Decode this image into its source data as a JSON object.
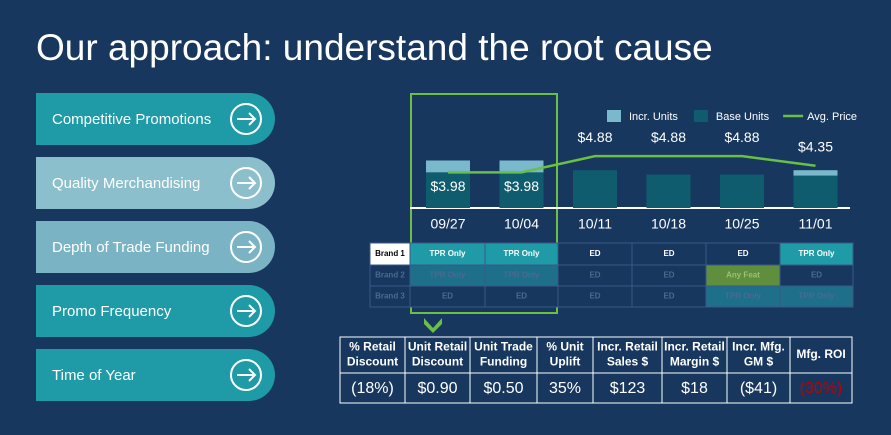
{
  "header": {
    "title": "Our approach: understand the root cause"
  },
  "levers": [
    "Competitive Promotions",
    "Quality Merchandising",
    "Depth of Trade Funding",
    "Promo Frequency",
    "Time of Year"
  ],
  "chart_data": {
    "type": "bar",
    "categories": [
      "09/27",
      "10/04",
      "10/11",
      "10/18",
      "10/25",
      "11/01"
    ],
    "series": [
      {
        "name": "Incr. Units",
        "type": "bar",
        "color": "#7ab8cc",
        "values": [
          11,
          11,
          0,
          0,
          0,
          5
        ]
      },
      {
        "name": "Base Units",
        "type": "bar",
        "color": "#0f5c6e",
        "values": [
          33,
          33,
          35,
          31,
          31,
          30
        ]
      },
      {
        "name": "Avg. Price",
        "type": "line",
        "axis": "y2",
        "color": "#6abf45",
        "values": [
          3.98,
          3.98,
          4.88,
          4.88,
          4.88,
          4.35
        ],
        "value_labels": [
          "$3.98",
          "$3.98",
          "$4.88",
          "$4.88",
          "$4.88",
          "$4.35"
        ]
      }
    ],
    "ylim": [
      0,
      100
    ],
    "y2lim": [
      2,
      8
    ]
  },
  "brand_table": [
    {
      "name": "Brand 1",
      "cells": [
        "TPR Only",
        "TPR Only",
        "ED",
        "ED",
        "ED",
        "TPR Only"
      ]
    },
    {
      "name": "Brand 2",
      "cells": [
        "TPR Only",
        "TPR Only",
        "ED",
        "ED",
        "Any Feat",
        "ED"
      ]
    },
    {
      "name": "Brand 3",
      "cells": [
        "ED",
        "ED",
        "ED",
        "ED",
        "TPR Only",
        "TPR Only"
      ]
    }
  ],
  "metrics": [
    {
      "header": [
        "% Retail",
        "Discount"
      ],
      "value": "(18%)"
    },
    {
      "header": [
        "Unit Retail",
        "Discount"
      ],
      "value": "$0.90"
    },
    {
      "header": [
        "Unit Trade",
        "Funding"
      ],
      "value": "$0.50"
    },
    {
      "header": [
        "% Unit",
        "Uplift"
      ],
      "value": "35%"
    },
    {
      "header": [
        "Incr. Retail",
        "Sales $"
      ],
      "value": "$123"
    },
    {
      "header": [
        "Incr. Retail",
        "Margin $"
      ],
      "value": "$18"
    },
    {
      "header": [
        "Incr. Mfg.",
        "GM $"
      ],
      "value": "($41)"
    },
    {
      "header": [
        "Mfg. ROI"
      ],
      "value": "(30%)"
    }
  ]
}
